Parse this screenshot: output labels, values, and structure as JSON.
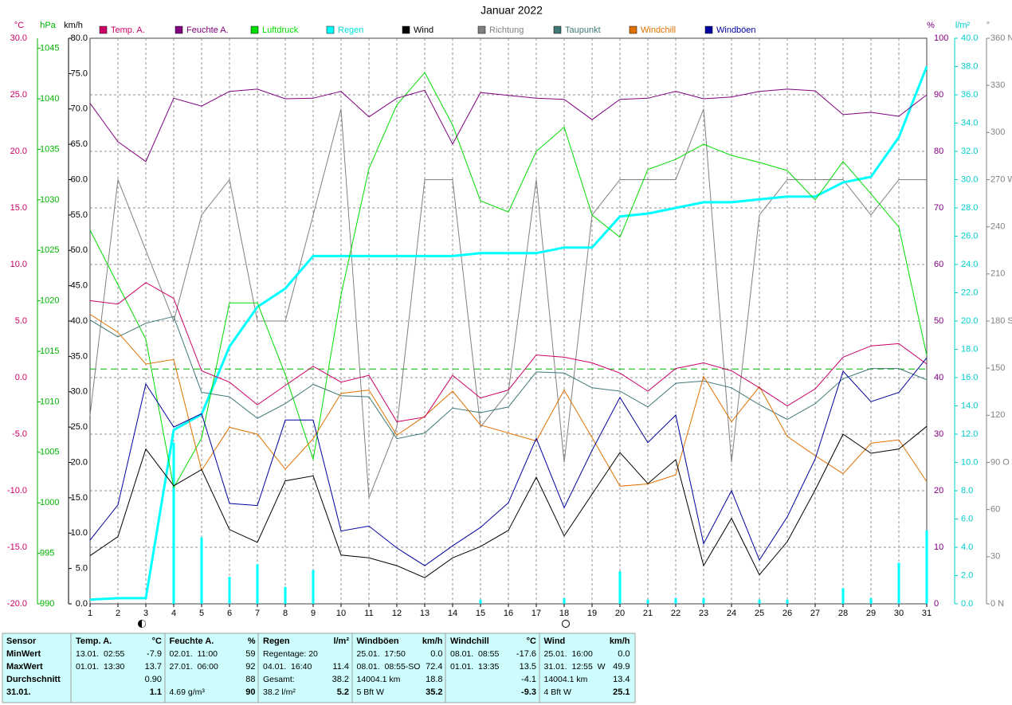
{
  "chart_data": {
    "type": "line",
    "title": "Januar 2022",
    "x": [
      1,
      2,
      3,
      4,
      5,
      6,
      7,
      8,
      9,
      10,
      11,
      12,
      13,
      14,
      15,
      16,
      17,
      18,
      19,
      20,
      21,
      22,
      23,
      24,
      25,
      26,
      27,
      28,
      29,
      30,
      31
    ],
    "xlim": [
      1,
      31
    ],
    "grid": true,
    "axes": [
      {
        "name": "°C",
        "color": "#cc0066",
        "lim": [
          -20,
          30
        ],
        "ticks": [
          {
            "value": -20,
            "label": "-20.0"
          },
          {
            "value": -15,
            "label": "-15.0"
          },
          {
            "value": -10,
            "label": "-10.0"
          },
          {
            "value": -5,
            "label": "-5.0"
          },
          {
            "value": 0,
            "label": "0.0"
          },
          {
            "value": 5,
            "label": "5.0"
          },
          {
            "value": 10,
            "label": "10.0"
          },
          {
            "value": 15,
            "label": "15.0"
          },
          {
            "value": 20,
            "label": "20.0"
          },
          {
            "value": 25,
            "label": "25.0"
          },
          {
            "value": 30,
            "label": "30.0"
          }
        ]
      },
      {
        "name": "hPa",
        "color": "#00b400",
        "lim": [
          990,
          1046
        ],
        "ticks": [
          990,
          995,
          1000,
          1005,
          1010,
          1015,
          1020,
          1025,
          1030,
          1035,
          1040,
          1045
        ]
      },
      {
        "name": "km/h",
        "color": "#000000",
        "lim": [
          0,
          80
        ],
        "ticks": [
          {
            "value": 0,
            "label": "0.0"
          },
          {
            "value": 5,
            "label": "5.0"
          },
          {
            "value": 10,
            "label": "10.0"
          },
          {
            "value": 15,
            "label": "15.0"
          },
          {
            "value": 20,
            "label": "20.0"
          },
          {
            "value": 25,
            "label": "25.0"
          },
          {
            "value": 30,
            "label": "30.0"
          },
          {
            "value": 35,
            "label": "35.0"
          },
          {
            "value": 40,
            "label": "40.0"
          },
          {
            "value": 45,
            "label": "45.0"
          },
          {
            "value": 50,
            "label": "50.0"
          },
          {
            "value": 55,
            "label": "55.0"
          },
          {
            "value": 60,
            "label": "60.0"
          },
          {
            "value": 65,
            "label": "65.0"
          },
          {
            "value": 70,
            "label": "70.0"
          },
          {
            "value": 75,
            "label": "75.0"
          },
          {
            "value": 80,
            "label": "80.0"
          }
        ]
      },
      {
        "name": "%",
        "color": "#800080",
        "lim": [
          0,
          100
        ],
        "ticks": [
          0,
          10,
          20,
          30,
          40,
          50,
          60,
          70,
          80,
          90,
          100
        ]
      },
      {
        "name": "l/m²",
        "color": "#00cccc",
        "lim": [
          0,
          40
        ],
        "ticks": [
          {
            "value": 0,
            "label": "0.0"
          },
          {
            "value": 2,
            "label": "2.0"
          },
          {
            "value": 4,
            "label": "4.0"
          },
          {
            "value": 6,
            "label": "6.0"
          },
          {
            "value": 8,
            "label": "8.0"
          },
          {
            "value": 10,
            "label": "10.0"
          },
          {
            "value": 12,
            "label": "12.0"
          },
          {
            "value": 14,
            "label": "14.0"
          },
          {
            "value": 16,
            "label": "16.0"
          },
          {
            "value": 18,
            "label": "18.0"
          },
          {
            "value": 20,
            "label": "20.0"
          },
          {
            "value": 22,
            "label": "22.0"
          },
          {
            "value": 24,
            "label": "24.0"
          },
          {
            "value": 26,
            "label": "26.0"
          },
          {
            "value": 28,
            "label": "28.0"
          },
          {
            "value": 30,
            "label": "30.0"
          },
          {
            "value": 32,
            "label": "32.0"
          },
          {
            "value": 34,
            "label": "34.0"
          },
          {
            "value": 36,
            "label": "36.0"
          },
          {
            "value": 38,
            "label": "38.0"
          },
          {
            "value": 40,
            "label": "40.0"
          }
        ]
      },
      {
        "name": "°",
        "color": "#808080",
        "lim": [
          0,
          360
        ],
        "ticks": [
          {
            "value": 0,
            "label": "0 N"
          },
          30,
          60,
          {
            "value": 90,
            "label": "90 O"
          },
          120,
          150,
          {
            "value": 180,
            "label": "180 S"
          },
          210,
          240,
          {
            "value": 270,
            "label": "270 W"
          },
          300,
          330,
          {
            "value": 360,
            "label": "360 N"
          }
        ]
      }
    ],
    "pressure_reference": 1013.25,
    "series": [
      {
        "name": "Temp. A.",
        "color": "#cc0066",
        "axis": 0,
        "values": [
          6.8,
          6.5,
          8.4,
          7.0,
          0.6,
          -0.4,
          -2.4,
          -0.7,
          1.0,
          -0.4,
          0.2,
          -3.9,
          -3.5,
          0.2,
          -1.8,
          -1.1,
          2.0,
          1.8,
          1.3,
          0.4,
          -1.2,
          0.8,
          1.3,
          0.6,
          -0.9,
          -2.5,
          -1.0,
          1.8,
          2.8,
          3.0,
          1.2
        ]
      },
      {
        "name": "Feuchte A.",
        "color": "#800080",
        "axis": 3,
        "values": [
          88.5,
          81.7,
          78.2,
          89.4,
          88.0,
          90.6,
          91.0,
          89.3,
          89.4,
          90.6,
          86.1,
          89.4,
          90.8,
          81.3,
          90.4,
          89.9,
          89.4,
          89.2,
          85.6,
          89.2,
          89.4,
          90.6,
          89.3,
          89.6,
          90.6,
          91.0,
          90.7,
          86.5,
          86.9,
          86.2,
          90.0
        ]
      },
      {
        "name": "Luftdruck",
        "color": "#00dd00",
        "axis": 1,
        "values": [
          1027.0,
          1021.6,
          1016.2,
          1001.5,
          1006.4,
          1019.8,
          1019.8,
          1012.7,
          1004.3,
          1020.6,
          1033.1,
          1039.4,
          1042.6,
          1037.4,
          1029.9,
          1028.8,
          1034.8,
          1037.2,
          1028.5,
          1026.3,
          1033.0,
          1034.0,
          1035.5,
          1034.4,
          1033.7,
          1032.9,
          1030.0,
          1033.8,
          1030.6,
          1027.3,
          1014.6
        ]
      },
      {
        "name": "Regen",
        "color": "#00ffff",
        "axis": 4,
        "values": [
          0.3,
          0.4,
          0.4,
          12.3,
          13.4,
          18.2,
          21.0,
          22.3,
          24.6,
          24.6,
          24.6,
          24.6,
          24.6,
          24.6,
          24.8,
          24.8,
          24.8,
          25.2,
          25.2,
          27.4,
          27.6,
          28.0,
          28.4,
          28.4,
          28.6,
          28.8,
          28.8,
          29.8,
          30.2,
          33.0,
          38.0
        ],
        "daily_values": [
          0,
          0,
          0,
          11.4,
          4.7,
          1.9,
          2.8,
          1.2,
          2.4,
          0,
          0,
          0,
          0,
          0,
          0.3,
          0,
          0,
          0.4,
          0,
          2.3,
          0.3,
          0.4,
          0.4,
          0,
          0.3,
          0.3,
          0,
          1.1,
          0.4,
          2.9,
          5.2
        ]
      },
      {
        "name": "Wind",
        "color": "#000000",
        "axis": 2,
        "values": [
          6.8,
          9.5,
          21.9,
          16.7,
          19.0,
          10.5,
          8.7,
          17.4,
          18.1,
          6.9,
          6.5,
          5.4,
          3.7,
          6.5,
          8.1,
          10.4,
          17.9,
          9.6,
          15.5,
          21.4,
          17.0,
          20.4,
          5.4,
          12.1,
          4.1,
          8.8,
          16.1,
          24.0,
          21.3,
          21.9,
          25.1
        ]
      },
      {
        "name": "Richtung",
        "color": "#808080",
        "axis": 5,
        "values": [
          120,
          270,
          225,
          180,
          247.5,
          270,
          180,
          180,
          247.5,
          315,
          67.5,
          112.5,
          270,
          270,
          112.5,
          135,
          270,
          90,
          247.5,
          270,
          270,
          270,
          315,
          90,
          247.5,
          270,
          270,
          270,
          247.5,
          270,
          270
        ]
      },
      {
        "name": "Taupunkt",
        "color": "#407878",
        "axis": 0,
        "values": [
          5.1,
          3.6,
          4.8,
          5.4,
          -1.3,
          -1.7,
          -3.6,
          -2.3,
          -0.6,
          -1.6,
          -1.7,
          -5.4,
          -4.9,
          -2.7,
          -3.1,
          -2.6,
          0.5,
          0.4,
          -0.9,
          -1.2,
          -2.6,
          -0.5,
          -0.3,
          -0.9,
          -2.4,
          -3.7,
          -2.3,
          -0.1,
          0.8,
          0.8,
          -0.2
        ]
      },
      {
        "name": "Windchill",
        "color": "#e07000",
        "axis": 0,
        "values": [
          5.6,
          4.0,
          1.2,
          1.6,
          -8.2,
          -4.4,
          -5.0,
          -8.1,
          -5.4,
          -1.4,
          -1.1,
          -5.1,
          -3.4,
          -1.2,
          -4.2,
          -4.9,
          -5.6,
          -1.1,
          -5.3,
          -9.6,
          -9.4,
          -8.6,
          0.1,
          -3.9,
          -0.8,
          -5.2,
          -6.9,
          -8.5,
          -5.8,
          -5.5,
          -9.2
        ]
      },
      {
        "name": "Windböen",
        "color": "#0000a0",
        "axis": 2,
        "values": [
          9.0,
          14.0,
          31.1,
          25.0,
          26.9,
          14.2,
          13.9,
          26.0,
          26.0,
          10.3,
          11.0,
          7.9,
          5.4,
          8.2,
          10.8,
          14.3,
          23.4,
          13.6,
          21.7,
          29.2,
          22.8,
          26.7,
          8.5,
          16.0,
          6.2,
          12.3,
          20.5,
          32.9,
          28.6,
          29.9,
          34.8
        ]
      }
    ]
  },
  "table": {
    "sensor": {
      "header": "Sensor",
      "rows": [
        "MinWert",
        "MaxWert",
        "Durchschnitt",
        "31.01."
      ]
    },
    "columns": [
      {
        "header": "Temp. A.",
        "unit": "°C",
        "rows": [
          [
            "13.01.  02:55",
            "-7.9"
          ],
          [
            "01.01.  13:30",
            "13.7"
          ],
          [
            null,
            "0.90"
          ],
          [
            null,
            "1.1"
          ]
        ]
      },
      {
        "header": "Feuchte A.",
        "unit": "%",
        "rows": [
          [
            "02.01.  11:00",
            "59"
          ],
          [
            "27.01.  06:00",
            "92"
          ],
          [
            null,
            "88"
          ],
          [
            "4.69 g/m³",
            "90"
          ]
        ]
      },
      {
        "header": "Regen",
        "unit": "l/m²",
        "rows": [
          [
            "Regentage: 20",
            null
          ],
          [
            "04.01.  16:40",
            "11.4"
          ],
          [
            "Gesamt:",
            "38.2"
          ],
          [
            "38.2 l/m²",
            "5.2"
          ]
        ]
      },
      {
        "header": "Windböen",
        "unit": "km/h",
        "rows": [
          [
            "25.01.  17:50",
            "0.0"
          ],
          [
            "08.01.  08:55-SO",
            "72.4"
          ],
          [
            "14004.1 km",
            "18.8"
          ],
          [
            "5 Bft W",
            "35.2"
          ]
        ]
      },
      {
        "header": "Windchill",
        "unit": "°C",
        "rows": [
          [
            "08.01.  08:55",
            "-17.6"
          ],
          [
            "01.01.  13:35",
            "13.5"
          ],
          [
            null,
            "-4.1"
          ],
          [
            null,
            "-9.3"
          ]
        ]
      },
      {
        "header": "Wind",
        "unit": "km/h",
        "rows": [
          [
            "25.01.  16:00",
            "0.0"
          ],
          [
            "31.01.  12:55  W",
            "49.9"
          ],
          [
            "14004.1 km",
            "13.4"
          ],
          [
            "4 Bft W",
            "25.1"
          ]
        ]
      }
    ]
  }
}
